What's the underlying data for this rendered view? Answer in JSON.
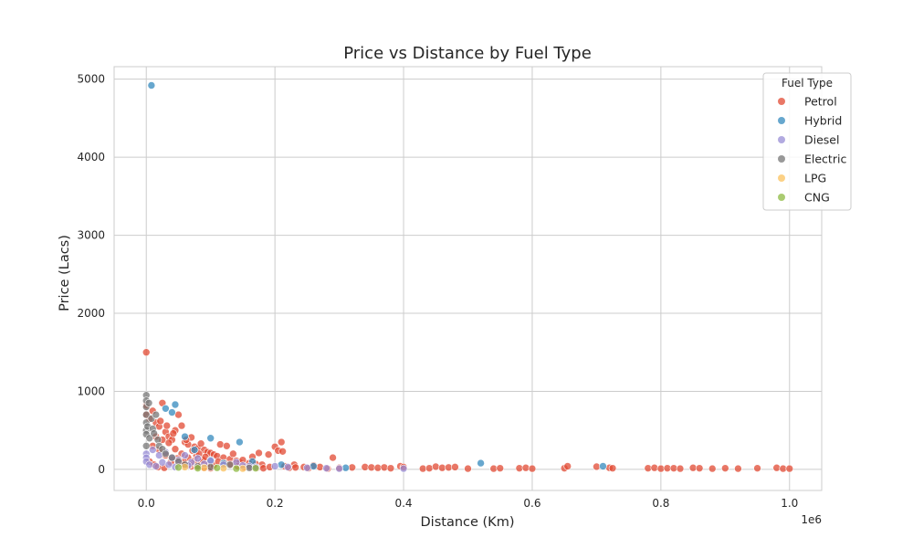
{
  "chart_data": {
    "type": "scatter",
    "title": "Price vs Distance by Fuel Type",
    "xlabel": "Distance (Km)",
    "ylabel": "Price (Lacs)",
    "x_offset_label": "1e6",
    "xlim": [
      -50000,
      1050000
    ],
    "ylim": [
      -270,
      5160
    ],
    "x_ticks": [
      0,
      200000,
      400000,
      600000,
      800000,
      1000000
    ],
    "x_tick_labels": [
      "0.0",
      "0.2",
      "0.4",
      "0.6",
      "0.8",
      "1.0"
    ],
    "y_ticks": [
      0,
      1000,
      2000,
      3000,
      4000,
      5000
    ],
    "y_tick_labels": [
      "0",
      "1000",
      "2000",
      "3000",
      "4000",
      "5000"
    ],
    "grid": true,
    "legend": {
      "title": "Fuel Type",
      "position": "upper right"
    },
    "series": [
      {
        "name": "Petrol",
        "color": "#e24a33",
        "points": [
          [
            0,
            1500
          ],
          [
            0,
            820
          ],
          [
            0,
            700
          ],
          [
            5000,
            650
          ],
          [
            10000,
            750
          ],
          [
            15000,
            600
          ],
          [
            20000,
            550
          ],
          [
            25000,
            850
          ],
          [
            30000,
            480
          ],
          [
            35000,
            420
          ],
          [
            40000,
            380
          ],
          [
            45000,
            500
          ],
          [
            50000,
            700
          ],
          [
            55000,
            560
          ],
          [
            60000,
            350
          ],
          [
            65000,
            320
          ],
          [
            70000,
            410
          ],
          [
            75000,
            290
          ],
          [
            80000,
            270
          ],
          [
            85000,
            330
          ],
          [
            90000,
            250
          ],
          [
            95000,
            220
          ],
          [
            100000,
            210
          ],
          [
            105000,
            190
          ],
          [
            110000,
            170
          ],
          [
            115000,
            320
          ],
          [
            120000,
            150
          ],
          [
            125000,
            300
          ],
          [
            130000,
            130
          ],
          [
            135000,
            200
          ],
          [
            140000,
            110
          ],
          [
            145000,
            90
          ],
          [
            150000,
            120
          ],
          [
            160000,
            80
          ],
          [
            165000,
            160
          ],
          [
            170000,
            70
          ],
          [
            175000,
            210
          ],
          [
            180000,
            60
          ],
          [
            190000,
            190
          ],
          [
            200000,
            290
          ],
          [
            205000,
            240
          ],
          [
            210000,
            350
          ],
          [
            212000,
            230
          ],
          [
            215000,
            40
          ],
          [
            230000,
            60
          ],
          [
            245000,
            30
          ],
          [
            260000,
            50
          ],
          [
            270000,
            30
          ],
          [
            290000,
            150
          ],
          [
            300000,
            20
          ],
          [
            320000,
            25
          ],
          [
            340000,
            30
          ],
          [
            350000,
            25
          ],
          [
            360000,
            20
          ],
          [
            370000,
            25
          ],
          [
            380000,
            15
          ],
          [
            395000,
            40
          ],
          [
            400000,
            30
          ],
          [
            430000,
            10
          ],
          [
            440000,
            15
          ],
          [
            450000,
            35
          ],
          [
            460000,
            20
          ],
          [
            470000,
            25
          ],
          [
            480000,
            30
          ],
          [
            500000,
            10
          ],
          [
            540000,
            10
          ],
          [
            550000,
            15
          ],
          [
            580000,
            15
          ],
          [
            590000,
            20
          ],
          [
            600000,
            10
          ],
          [
            650000,
            15
          ],
          [
            655000,
            40
          ],
          [
            700000,
            35
          ],
          [
            720000,
            20
          ],
          [
            725000,
            15
          ],
          [
            780000,
            15
          ],
          [
            790000,
            20
          ],
          [
            800000,
            10
          ],
          [
            810000,
            15
          ],
          [
            820000,
            15
          ],
          [
            830000,
            10
          ],
          [
            850000,
            20
          ],
          [
            860000,
            15
          ],
          [
            880000,
            10
          ],
          [
            900000,
            15
          ],
          [
            920000,
            10
          ],
          [
            950000,
            15
          ],
          [
            980000,
            20
          ],
          [
            990000,
            10
          ],
          [
            1000000,
            10
          ],
          [
            10000,
            300
          ],
          [
            20000,
            250
          ],
          [
            30000,
            180
          ],
          [
            40000,
            120
          ],
          [
            50000,
            80
          ],
          [
            60000,
            60
          ],
          [
            70000,
            40
          ],
          [
            80000,
            30
          ],
          [
            90000,
            20
          ],
          [
            100000,
            15
          ],
          [
            15000,
            420
          ],
          [
            25000,
            380
          ],
          [
            35000,
            340
          ],
          [
            45000,
            260
          ],
          [
            55000,
            200
          ],
          [
            65000,
            150
          ],
          [
            75000,
            110
          ],
          [
            85000,
            90
          ],
          [
            95000,
            70
          ],
          [
            105000,
            50
          ],
          [
            5000,
            100
          ],
          [
            12000,
            60
          ],
          [
            18000,
            30
          ],
          [
            28000,
            20
          ],
          [
            38000,
            90
          ],
          [
            48000,
            140
          ],
          [
            58000,
            100
          ],
          [
            68000,
            60
          ],
          [
            78000,
            180
          ],
          [
            88000,
            120
          ],
          [
            22000,
            620
          ],
          [
            32000,
            560
          ],
          [
            42000,
            460
          ],
          [
            62000,
            380
          ],
          [
            72000,
            240
          ],
          [
            82000,
            200
          ],
          [
            92000,
            160
          ],
          [
            112000,
            100
          ],
          [
            122000,
            80
          ],
          [
            132000,
            60
          ],
          [
            142000,
            40
          ],
          [
            152000,
            30
          ],
          [
            162000,
            25
          ],
          [
            172000,
            20
          ],
          [
            182000,
            15
          ],
          [
            192000,
            30
          ],
          [
            222000,
            20
          ],
          [
            232000,
            25
          ],
          [
            252000,
            15
          ],
          [
            282000,
            10
          ]
        ]
      },
      {
        "name": "Hybrid",
        "color": "#348abd",
        "points": [
          [
            8000,
            4920
          ],
          [
            30000,
            780
          ],
          [
            40000,
            730
          ],
          [
            45000,
            830
          ],
          [
            60000,
            420
          ],
          [
            75000,
            250
          ],
          [
            100000,
            400
          ],
          [
            145000,
            350
          ],
          [
            165000,
            100
          ],
          [
            210000,
            60
          ],
          [
            260000,
            40
          ],
          [
            310000,
            20
          ],
          [
            520000,
            80
          ],
          [
            710000,
            40
          ],
          [
            100000,
            120
          ],
          [
            120000,
            80
          ]
        ]
      },
      {
        "name": "Diesel",
        "color": "#988ed5",
        "points": [
          [
            0,
            200
          ],
          [
            0,
            150
          ],
          [
            0,
            100
          ],
          [
            10000,
            250
          ],
          [
            20000,
            180
          ],
          [
            30000,
            220
          ],
          [
            40000,
            150
          ],
          [
            50000,
            120
          ],
          [
            60000,
            180
          ],
          [
            70000,
            90
          ],
          [
            80000,
            140
          ],
          [
            90000,
            70
          ],
          [
            100000,
            110
          ],
          [
            120000,
            60
          ],
          [
            140000,
            90
          ],
          [
            150000,
            50
          ],
          [
            160000,
            40
          ],
          [
            170000,
            30
          ],
          [
            200000,
            40
          ],
          [
            220000,
            30
          ],
          [
            250000,
            20
          ],
          [
            280000,
            15
          ],
          [
            300000,
            10
          ],
          [
            400000,
            10
          ],
          [
            5000,
            60
          ],
          [
            15000,
            40
          ],
          [
            25000,
            90
          ],
          [
            35000,
            60
          ],
          [
            45000,
            30
          ],
          [
            65000,
            50
          ]
        ]
      },
      {
        "name": "Electric",
        "color": "#777777",
        "points": [
          [
            0,
            950
          ],
          [
            0,
            880
          ],
          [
            0,
            800
          ],
          [
            0,
            700
          ],
          [
            0,
            600
          ],
          [
            0,
            500
          ],
          [
            0,
            450
          ],
          [
            0,
            300
          ],
          [
            2000,
            550
          ],
          [
            4000,
            850
          ],
          [
            5000,
            400
          ],
          [
            8000,
            650
          ],
          [
            10000,
            520
          ],
          [
            12000,
            460
          ],
          [
            15000,
            700
          ],
          [
            18000,
            380
          ],
          [
            20000,
            300
          ],
          [
            25000,
            260
          ],
          [
            30000,
            200
          ],
          [
            40000,
            150
          ],
          [
            50000,
            100
          ],
          [
            60000,
            60
          ],
          [
            80000,
            40
          ],
          [
            100000,
            30
          ],
          [
            130000,
            60
          ],
          [
            160000,
            20
          ]
        ]
      },
      {
        "name": "LPG",
        "color": "#fbc15e",
        "points": [
          [
            60000,
            30
          ],
          [
            90000,
            20
          ],
          [
            120000,
            15
          ],
          [
            150000,
            10
          ]
        ]
      },
      {
        "name": "CNG",
        "color": "#8eba42",
        "points": [
          [
            50000,
            25
          ],
          [
            80000,
            15
          ],
          [
            110000,
            20
          ],
          [
            140000,
            10
          ],
          [
            170000,
            15
          ]
        ]
      }
    ]
  }
}
